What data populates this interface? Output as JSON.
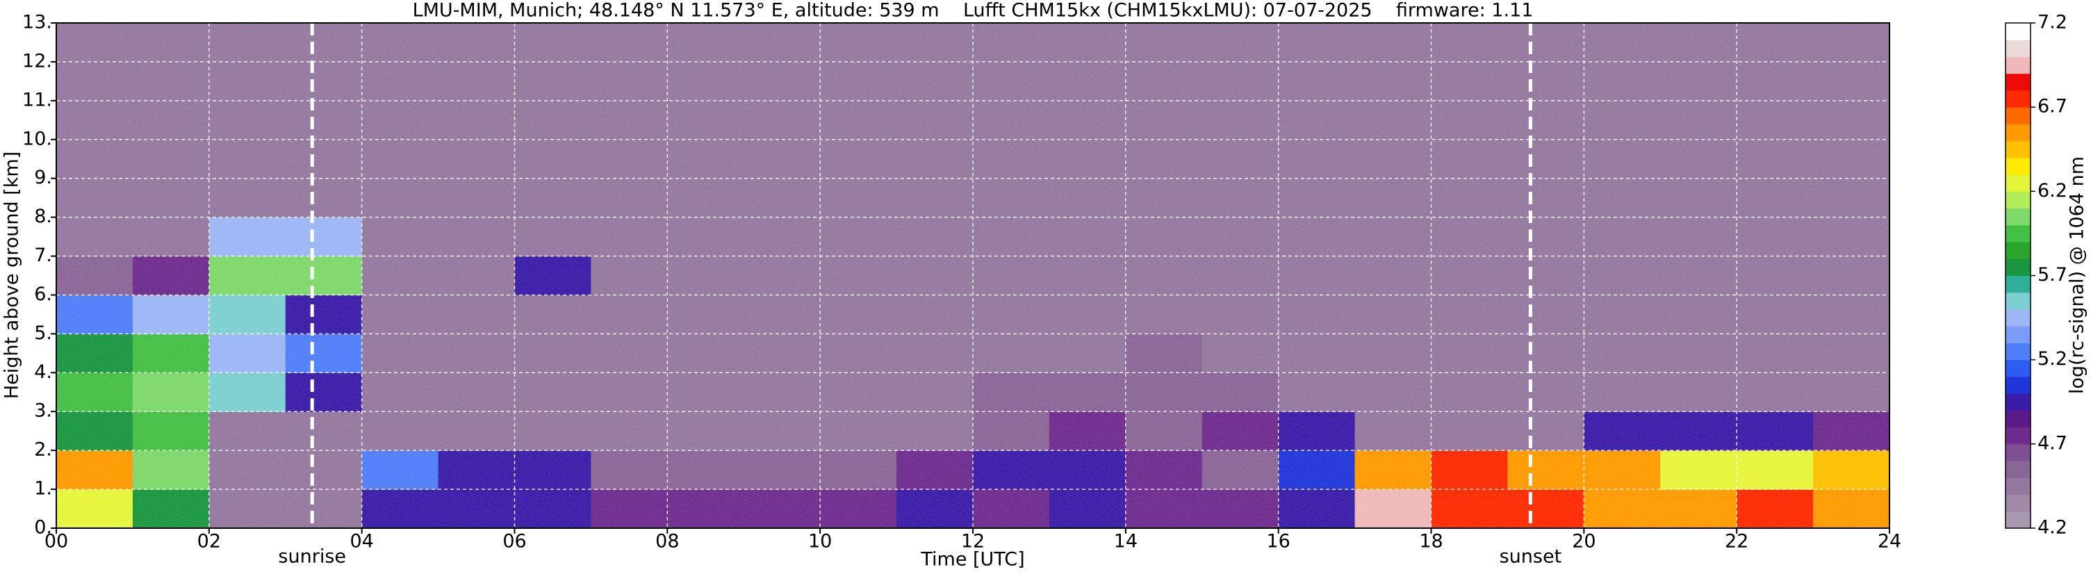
{
  "chart_data": {
    "type": "heatmap",
    "title": "LMU-MIM, Munich; 48.148° N 11.573° E, altitude: 539 m    Lufft CHM15kx (CHM15kxLMU): 07-07-2025    firmware: 1.11",
    "xlabel": "Time [UTC]",
    "ylabel": "Height above ground [km]",
    "xlim": [
      0,
      24
    ],
    "xticks": [
      {
        "value": 0,
        "label": "00"
      },
      {
        "value": 2,
        "label": "02"
      },
      {
        "value": 4,
        "label": "04"
      },
      {
        "value": 6,
        "label": "06"
      },
      {
        "value": 8,
        "label": "08"
      },
      {
        "value": 10,
        "label": "10"
      },
      {
        "value": 12,
        "label": "12"
      },
      {
        "value": 14,
        "label": "14"
      },
      {
        "value": 16,
        "label": "16"
      },
      {
        "value": 18,
        "label": "18"
      },
      {
        "value": 20,
        "label": "20"
      },
      {
        "value": 22,
        "label": "22"
      },
      {
        "value": 24,
        "label": "24"
      }
    ],
    "ylim": [
      0,
      13
    ],
    "yticks": [
      {
        "value": 0,
        "label": "0."
      },
      {
        "value": 1,
        "label": "1."
      },
      {
        "value": 2,
        "label": "2."
      },
      {
        "value": 3,
        "label": "3."
      },
      {
        "value": 4,
        "label": "4."
      },
      {
        "value": 5,
        "label": "5."
      },
      {
        "value": 6,
        "label": "6."
      },
      {
        "value": 7,
        "label": "7."
      },
      {
        "value": 8,
        "label": "8."
      },
      {
        "value": 9,
        "label": "9."
      },
      {
        "value": 10,
        "label": "10."
      },
      {
        "value": 11,
        "label": "11."
      },
      {
        "value": 12,
        "label": "12."
      },
      {
        "value": 13,
        "label": "13."
      }
    ],
    "grid": true,
    "x": [
      0.5,
      1.5,
      2.5,
      3.5,
      4.5,
      5.5,
      6.5,
      7.5,
      8.5,
      9.5,
      10.5,
      11.5,
      12.5,
      13.5,
      14.5,
      15.5,
      16.5,
      17.5,
      18.5,
      19.5,
      20.5,
      21.5,
      22.5,
      23.5
    ],
    "y": [
      0.5,
      1.5,
      2.5,
      3.5,
      4.5,
      5.5,
      6.5,
      7.5,
      8.5,
      9.5,
      10.5,
      11.5,
      12.5
    ],
    "z": [
      [
        6.3,
        5.8,
        4.4,
        4.4,
        5.0,
        4.9,
        5.0,
        4.8,
        4.8,
        4.8,
        4.8,
        4.9,
        4.8,
        4.9,
        4.8,
        4.8,
        4.9,
        7.0,
        6.8,
        6.7,
        6.6,
        6.5,
        6.7,
        6.6
      ],
      [
        6.5,
        6.0,
        4.4,
        4.4,
        5.3,
        5.0,
        4.9,
        4.6,
        4.6,
        4.6,
        4.6,
        4.7,
        4.9,
        5.0,
        4.7,
        4.6,
        5.1,
        6.5,
        6.8,
        6.6,
        6.6,
        6.2,
        6.3,
        6.4
      ],
      [
        5.8,
        5.9,
        4.5,
        4.5,
        4.5,
        4.5,
        4.5,
        4.5,
        4.5,
        4.5,
        4.5,
        4.5,
        4.6,
        4.7,
        4.6,
        4.8,
        5.0,
        4.5,
        4.4,
        4.5,
        5.0,
        5.0,
        4.9,
        4.8
      ],
      [
        5.9,
        6.0,
        5.6,
        5.0,
        4.5,
        4.5,
        4.5,
        4.5,
        4.5,
        4.5,
        4.5,
        4.5,
        4.6,
        4.6,
        4.6,
        4.6,
        4.5,
        4.4,
        4.4,
        4.4,
        4.4,
        4.4,
        4.4,
        4.4
      ],
      [
        5.7,
        5.9,
        5.5,
        5.2,
        4.5,
        4.5,
        4.5,
        4.5,
        4.5,
        4.5,
        4.5,
        4.5,
        4.5,
        4.5,
        4.6,
        4.5,
        4.5,
        4.4,
        4.4,
        4.4,
        4.4,
        4.4,
        4.4,
        4.4
      ],
      [
        5.2,
        5.4,
        5.6,
        5.0,
        4.5,
        4.5,
        4.5,
        4.5,
        4.5,
        4.5,
        4.5,
        4.5,
        4.5,
        4.5,
        4.5,
        4.5,
        4.5,
        4.4,
        4.4,
        4.4,
        4.4,
        4.4,
        4.4,
        4.4
      ],
      [
        4.6,
        4.8,
        6.0,
        6.1,
        4.5,
        4.5,
        4.9,
        4.5,
        4.5,
        4.5,
        4.5,
        4.5,
        4.5,
        4.5,
        4.5,
        4.5,
        4.5,
        4.4,
        4.4,
        4.4,
        4.4,
        4.4,
        4.4,
        4.4
      ],
      [
        4.5,
        4.5,
        5.5,
        5.5,
        4.5,
        4.5,
        4.5,
        4.5,
        4.5,
        4.5,
        4.5,
        4.5,
        4.5,
        4.5,
        4.5,
        4.5,
        4.5,
        4.4,
        4.4,
        4.4,
        4.4,
        4.4,
        4.4,
        4.4
      ],
      [
        4.4,
        4.4,
        4.4,
        4.5,
        4.5,
        4.5,
        4.5,
        4.5,
        4.5,
        4.5,
        4.5,
        4.5,
        4.5,
        4.5,
        4.5,
        4.5,
        4.5,
        4.4,
        4.4,
        4.4,
        4.4,
        4.4,
        4.4,
        4.4
      ],
      [
        4.4,
        4.4,
        4.4,
        4.5,
        4.5,
        4.5,
        4.5,
        4.5,
        4.5,
        4.5,
        4.5,
        4.5,
        4.5,
        4.5,
        4.5,
        4.5,
        4.5,
        4.4,
        4.4,
        4.4,
        4.4,
        4.4,
        4.4,
        4.4
      ],
      [
        4.4,
        4.4,
        4.4,
        4.5,
        4.5,
        4.5,
        4.5,
        4.5,
        4.5,
        4.5,
        4.5,
        4.5,
        4.5,
        4.5,
        4.5,
        4.5,
        4.5,
        4.4,
        4.4,
        4.4,
        4.4,
        4.4,
        4.4,
        4.4
      ],
      [
        4.4,
        4.4,
        4.4,
        4.5,
        4.5,
        4.5,
        4.5,
        4.5,
        4.5,
        4.5,
        4.5,
        4.5,
        4.5,
        4.5,
        4.5,
        4.5,
        4.5,
        4.4,
        4.4,
        4.4,
        4.4,
        4.4,
        4.4,
        4.4
      ],
      [
        4.4,
        4.4,
        4.4,
        4.5,
        4.5,
        4.5,
        4.5,
        4.5,
        4.5,
        4.5,
        4.5,
        4.5,
        4.5,
        4.5,
        4.5,
        4.5,
        4.5,
        4.4,
        4.4,
        4.4,
        4.4,
        4.4,
        4.4,
        4.4
      ]
    ],
    "clim": [
      4.2,
      7.2
    ],
    "colorbar_ticks": [
      4.2,
      4.7,
      5.2,
      5.7,
      6.2,
      6.7,
      7.2
    ],
    "colorbar_label": "log(rc-signal) @ 1064 nm",
    "colors": [
      "#a898b0",
      "#a08aa8",
      "#94789e",
      "#8a6696",
      "#7f4f94",
      "#6e2c8e",
      "#5c1a88",
      "#3a1ca8",
      "#2036d8",
      "#2d5cf2",
      "#4f7ef8",
      "#7a9ef8",
      "#9cb6f6",
      "#7ccfd0",
      "#2faf9a",
      "#1a9640",
      "#2aa52a",
      "#44c044",
      "#7ed86a",
      "#b2ee5a",
      "#e6f53a",
      "#ffea00",
      "#ffc000",
      "#ff9a00",
      "#ff6a00",
      "#ff2a00",
      "#ee0a0a",
      "#f0b8b8",
      "#ecdada",
      "#ffffff"
    ],
    "annotations": [
      {
        "text": "sunrise",
        "x": 3.35
      },
      {
        "text": "sunset",
        "x": 19.3
      }
    ]
  }
}
